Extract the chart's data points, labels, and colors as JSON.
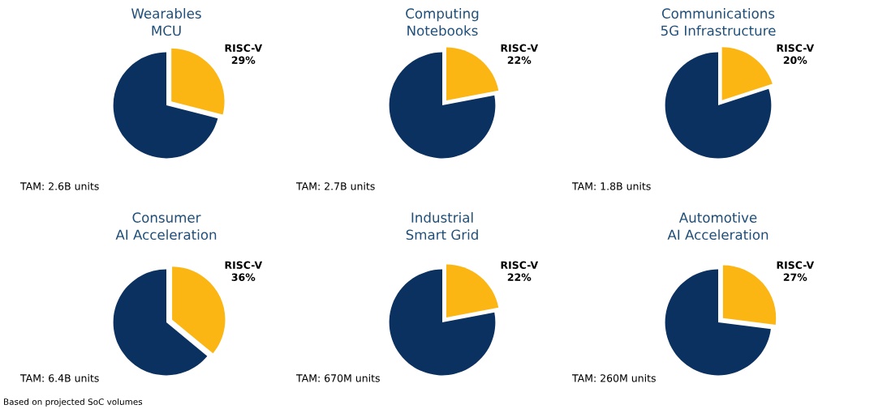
{
  "chart_data": [
    {
      "type": "pie",
      "title": "Wearables\nMCU",
      "categories": [
        "RISC-V",
        null
      ],
      "values": [
        29,
        71
      ],
      "value_labels": [
        "29%",
        null
      ],
      "colors": [
        "#fbb614",
        "#0b3160"
      ],
      "annotations": [
        "TAM: 2.6B units"
      ]
    },
    {
      "type": "pie",
      "title": "Computing\nNotebooks",
      "categories": [
        "RISC-V",
        null
      ],
      "values": [
        22,
        78
      ],
      "value_labels": [
        "22%",
        null
      ],
      "colors": [
        "#fbb614",
        "#0b3160"
      ],
      "annotations": [
        "TAM: 2.7B units"
      ]
    },
    {
      "type": "pie",
      "title": "Communications\n5G Infrastructure",
      "categories": [
        "RISC-V",
        null
      ],
      "values": [
        20,
        80
      ],
      "value_labels": [
        "20%",
        null
      ],
      "colors": [
        "#fbb614",
        "#0b3160"
      ],
      "annotations": [
        "TAM: 1.8B units"
      ]
    },
    {
      "type": "pie",
      "title": "Consumer\nAI Acceleration",
      "categories": [
        "RISC-V",
        null
      ],
      "values": [
        36,
        64
      ],
      "value_labels": [
        "36%",
        null
      ],
      "colors": [
        "#fbb614",
        "#0b3160"
      ],
      "annotations": [
        "TAM: 6.4B units",
        "Based on projected SoC volumes"
      ]
    },
    {
      "type": "pie",
      "title": "Industrial\nSmart Grid",
      "categories": [
        "RISC-V",
        null
      ],
      "values": [
        22,
        78
      ],
      "value_labels": [
        "22%",
        null
      ],
      "colors": [
        "#fbb614",
        "#0b3160"
      ],
      "annotations": [
        "TAM: 670M units"
      ]
    },
    {
      "type": "pie",
      "title": "Automotive\nAI Acceleration",
      "categories": [
        "RISC-V",
        null
      ],
      "values": [
        27,
        73
      ],
      "value_labels": [
        "27%",
        null
      ],
      "colors": [
        "#fbb614",
        "#0b3160"
      ],
      "annotations": [
        "TAM: 260M units"
      ]
    }
  ]
}
